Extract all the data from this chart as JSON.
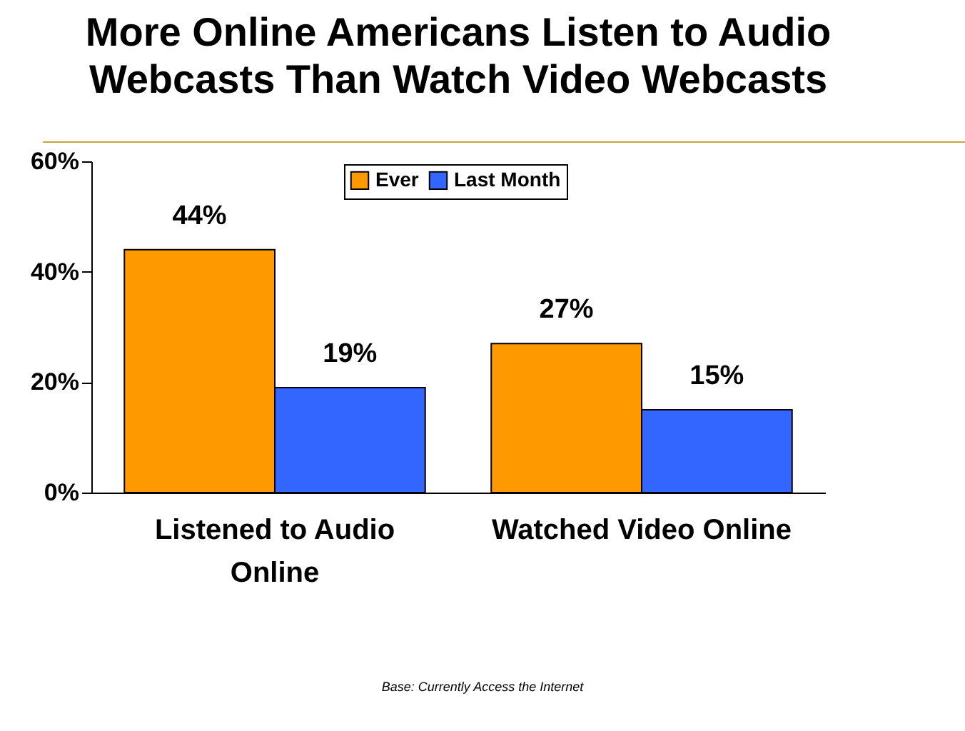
{
  "chart_data": {
    "type": "bar",
    "title": "More Online Americans Listen to Audio Webcasts Than Watch Video Webcasts",
    "categories": [
      "Listened to Audio Online",
      "Watched Video Online"
    ],
    "series": [
      {
        "name": "Ever",
        "color": "#ff9900",
        "values": [
          44,
          27
        ]
      },
      {
        "name": "Last Month",
        "color": "#3366ff",
        "values": [
          19,
          15
        ]
      }
    ],
    "ylim": [
      0,
      60
    ],
    "yticks": [
      {
        "value": 0,
        "label": "0%"
      },
      {
        "value": 20,
        "label": "20%"
      },
      {
        "value": 40,
        "label": "40%"
      },
      {
        "value": 60,
        "label": "60%"
      }
    ],
    "value_labels": [
      [
        "44%",
        "27%"
      ],
      [
        "19%",
        "15%"
      ]
    ],
    "legend": "top",
    "grid": false,
    "annotations": [
      "Base: Currently Access the Internet"
    ]
  }
}
